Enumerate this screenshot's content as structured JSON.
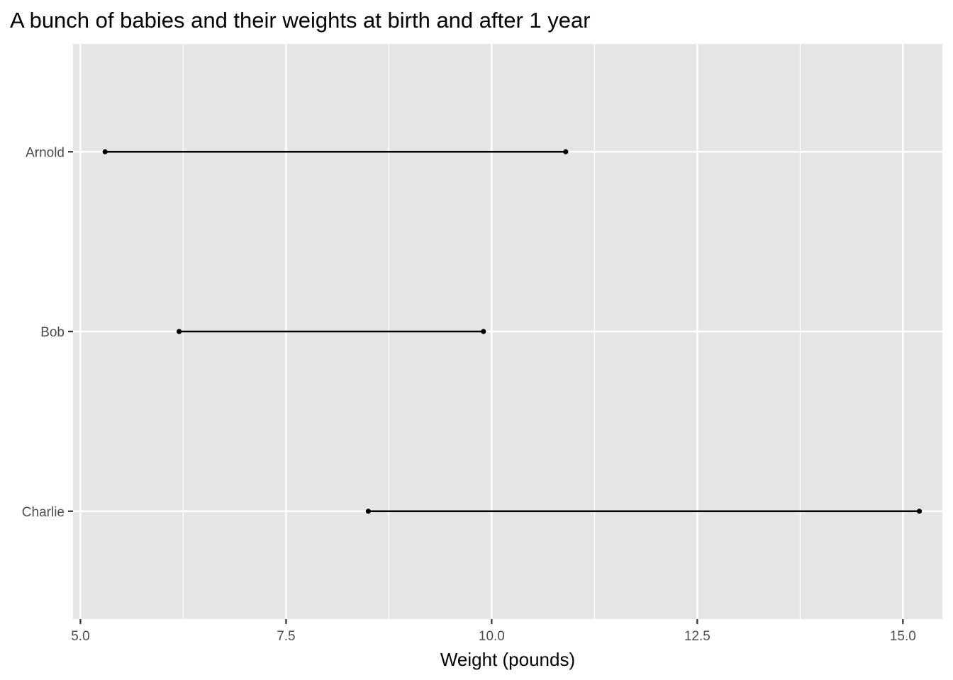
{
  "chart_data": {
    "type": "dumbbell",
    "title": "A bunch of babies and their weights at birth and after 1 year",
    "xlabel": "Weight (pounds)",
    "ylabel": "",
    "xlim": [
      4.91,
      15.48
    ],
    "xticks": [
      "5.0",
      "7.5",
      "10.0",
      "12.5",
      "15.0"
    ],
    "grid": true,
    "categories": [
      "Arnold",
      "Bob",
      "Charlie"
    ],
    "series": [
      {
        "values": [
          5.3,
          6.2,
          8.5
        ]
      },
      {
        "values": [
          10.9,
          9.9,
          15.2
        ]
      }
    ]
  },
  "colors": {
    "panel_background": "#e5e5e5",
    "grid": "#ffffff",
    "segment": "#000000",
    "tick_label": "#4d4d4d"
  }
}
